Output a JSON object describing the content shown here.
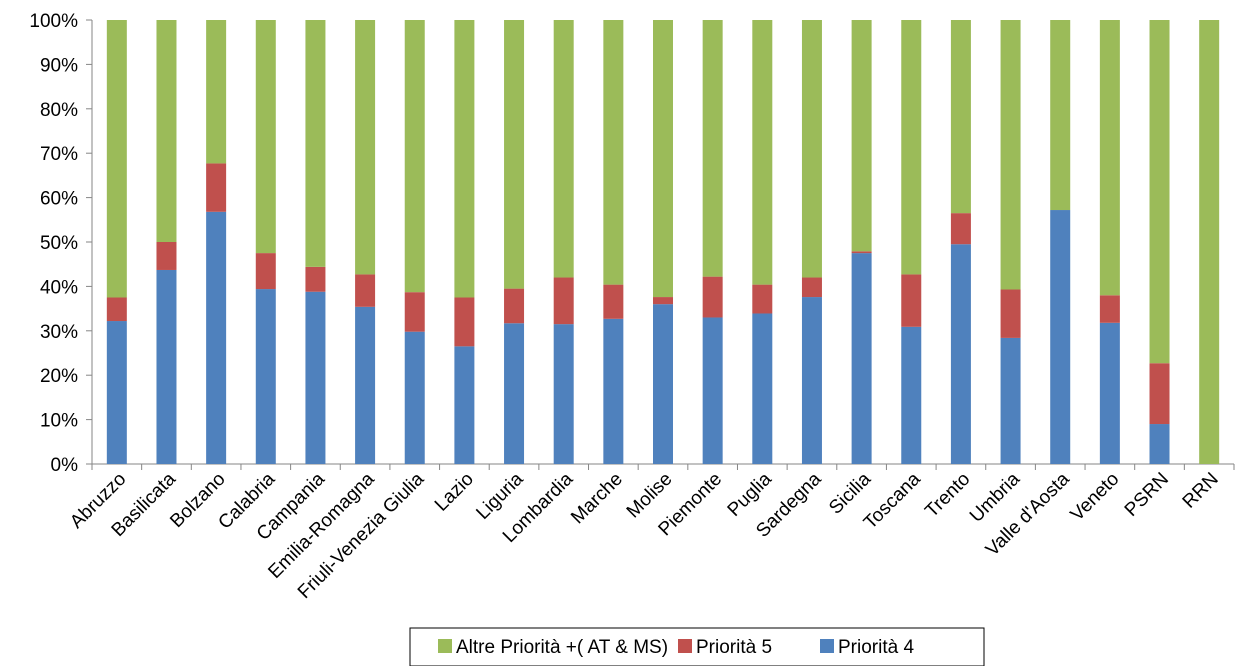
{
  "chart_data": {
    "type": "bar",
    "stacked": true,
    "percent_stacked": true,
    "categories": [
      "Abruzzo",
      "Basilicata",
      "Bolzano",
      "Calabria",
      "Campania",
      "Emilia-Romagna",
      "Friuli-Venezia Giulia",
      "Lazio",
      "Liguria",
      "Lombardia",
      "Marche",
      "Molise",
      "Piemonte",
      "Puglia",
      "Sardegna",
      "Sicilia",
      "Toscana",
      "Trento",
      "Umbria",
      "Valle d'Aosta",
      "Veneto",
      "PSRN",
      "RRN"
    ],
    "series": [
      {
        "name": "Priorità 4",
        "color": "#4f81bd",
        "values": [
          32.2,
          43.7,
          56.8,
          39.4,
          38.8,
          35.4,
          29.8,
          26.5,
          31.7,
          31.5,
          32.7,
          36.0,
          33.0,
          33.9,
          37.6,
          47.5,
          30.9,
          49.5,
          28.4,
          57.2,
          31.8,
          9.0,
          0
        ]
      },
      {
        "name": "Priorità 5",
        "color": "#c0504d",
        "values": [
          5.3,
          6.3,
          10.9,
          8.1,
          5.6,
          7.3,
          8.9,
          11.0,
          7.8,
          10.5,
          7.7,
          1.6,
          9.2,
          6.5,
          4.4,
          0.4,
          11.8,
          7.0,
          10.9,
          0,
          6.2,
          13.7,
          0
        ]
      },
      {
        "name": "Altre Priorità +( AT & MS)",
        "color": "#9bbb59",
        "values": [
          62.5,
          50.0,
          32.3,
          52.5,
          55.6,
          57.3,
          61.3,
          62.5,
          60.5,
          58.0,
          59.6,
          62.4,
          57.8,
          59.6,
          58.0,
          52.1,
          57.3,
          43.5,
          60.7,
          42.8,
          62.0,
          77.3,
          100
        ]
      }
    ],
    "ylim": [
      0,
      100
    ],
    "yticks": [
      "0%",
      "10%",
      "20%",
      "30%",
      "40%",
      "50%",
      "60%",
      "70%",
      "80%",
      "90%",
      "100%"
    ],
    "legend_position": "bottom-right",
    "legend_order": [
      "Altre Priorità +( AT & MS)",
      "Priorità 5",
      "Priorità 4"
    ],
    "grid": false
  }
}
